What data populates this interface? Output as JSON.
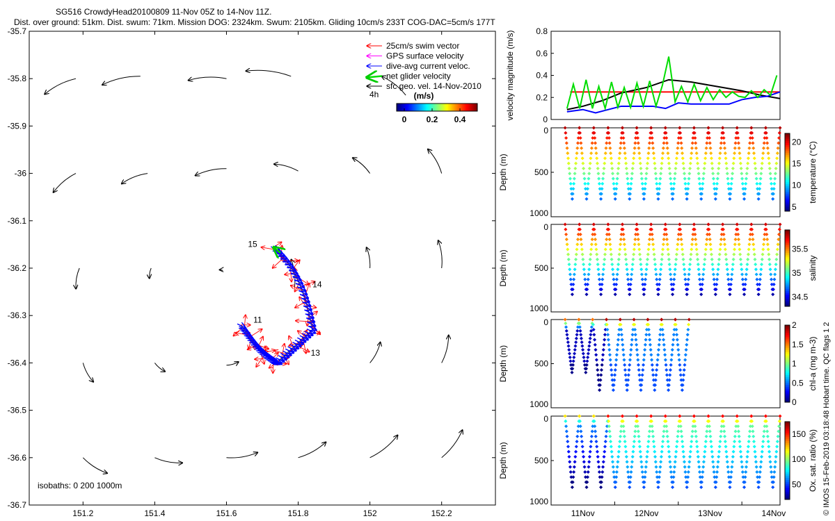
{
  "header": {
    "line1": "SG516 CrowdyHead20100809 11-Nov 05Z to 14-Nov 11Z.",
    "line2": "Dist. over ground: 51km. Dist. swum: 71km. Mission DOG: 2324km. Swum: 2105km. Gliding 10cm/s 233T COG-DAC=5cm/s 177T"
  },
  "watermark": "© IMOS 15-Feb-2019 03:18:48 Hobart time. QC flags 1  2",
  "map": {
    "xticks": [
      151.2,
      151.4,
      151.6,
      151.8,
      152,
      152.2
    ],
    "yticks": [
      -35.7,
      -35.8,
      -35.9,
      -36,
      -36.1,
      -36.2,
      -36.3,
      -36.4,
      -36.5,
      -36.6,
      -36.7
    ],
    "xlim": [
      151.05,
      152.35
    ],
    "ylim": [
      -36.7,
      -35.7
    ],
    "legend": [
      {
        "label": "25cm/s swim vector",
        "color": "#ff0000"
      },
      {
        "label": "GPS surface velocity",
        "color": "#ff00ff"
      },
      {
        "label": "dive-avg current veloc.",
        "color": "#0000ff"
      },
      {
        "label": "net glider velocity",
        "color": "#00dd00"
      },
      {
        "label": "sfc geo. vel. 14-Nov-2010",
        "color": "#000000"
      }
    ],
    "interval_label": "4h",
    "colorbar": {
      "title": "(m/s)",
      "ticks": [
        "0",
        "0.2",
        "0.4"
      ]
    },
    "isobaths_label": "isobaths: 0   200  1000m",
    "day_labels": [
      {
        "text": "15",
        "lon": 151.66,
        "lat": -36.155
      },
      {
        "text": "14",
        "lon": 151.84,
        "lat": -36.24
      },
      {
        "text": "11",
        "lon": 151.675,
        "lat": -36.315
      },
      {
        "text": "13",
        "lon": 151.835,
        "lat": -36.385
      }
    ],
    "geo_arrows": [
      {
        "x": 151.18,
        "y": -35.8,
        "u": -0.09,
        "v": -0.045
      },
      {
        "x": 151.36,
        "y": -35.795,
        "u": -0.11,
        "v": -0.025
      },
      {
        "x": 151.6,
        "y": -35.8,
        "u": -0.11,
        "v": -0.005
      },
      {
        "x": 151.78,
        "y": -35.795,
        "u": -0.13,
        "v": 0.015
      },
      {
        "x": 152.1,
        "y": -35.835,
        "u": -0.07,
        "v": 0.055
      },
      {
        "x": 151.18,
        "y": -36.0,
        "u": -0.065,
        "v": -0.055
      },
      {
        "x": 151.38,
        "y": -36.0,
        "u": -0.075,
        "v": -0.03
      },
      {
        "x": 151.6,
        "y": -35.99,
        "u": -0.09,
        "v": -0.02
      },
      {
        "x": 151.8,
        "y": -35.995,
        "u": -0.07,
        "v": 0.02
      },
      {
        "x": 152.0,
        "y": -36.0,
        "u": -0.05,
        "v": 0.045
      },
      {
        "x": 152.2,
        "y": -36.0,
        "u": -0.04,
        "v": 0.07
      },
      {
        "x": 151.19,
        "y": -36.2,
        "u": -0.01,
        "v": -0.06
      },
      {
        "x": 151.39,
        "y": -36.2,
        "u": -0.005,
        "v": -0.03
      },
      {
        "x": 151.59,
        "y": -36.205,
        "u": -0.01,
        "v": 0.002
      },
      {
        "x": 151.79,
        "y": -36.24,
        "u": -0.01,
        "v": 0.08
      },
      {
        "x": 152.0,
        "y": -36.2,
        "u": -0.01,
        "v": 0.06
      },
      {
        "x": 152.2,
        "y": -36.2,
        "u": -0.01,
        "v": 0.08
      },
      {
        "x": 151.6,
        "y": -36.405,
        "u": 0.035,
        "v": 0.01
      },
      {
        "x": 152.0,
        "y": -36.4,
        "u": 0.03,
        "v": 0.06
      },
      {
        "x": 152.2,
        "y": -36.4,
        "u": 0.02,
        "v": 0.08
      },
      {
        "x": 151.2,
        "y": -36.4,
        "u": 0.03,
        "v": -0.055
      },
      {
        "x": 151.4,
        "y": -36.4,
        "u": 0.03,
        "v": -0.025
      },
      {
        "x": 151.2,
        "y": -36.6,
        "u": 0.07,
        "v": -0.045
      },
      {
        "x": 151.4,
        "y": -36.6,
        "u": 0.08,
        "v": -0.015
      },
      {
        "x": 151.6,
        "y": -36.6,
        "u": 0.09,
        "v": 0.015
      },
      {
        "x": 151.8,
        "y": -36.6,
        "u": 0.08,
        "v": 0.045
      },
      {
        "x": 152.0,
        "y": -36.6,
        "u": 0.08,
        "v": 0.065
      },
      {
        "x": 152.2,
        "y": -36.6,
        "u": 0.06,
        "v": 0.08
      }
    ]
  },
  "chart_data": [
    {
      "type": "line",
      "title": "",
      "ylabel": "velocity magnitude (m/s)",
      "x_days": [
        11,
        14.6
      ],
      "ylim": [
        0,
        0.8
      ],
      "yticks": [
        0,
        0.2,
        0.4,
        0.6,
        0.8
      ],
      "series": [
        {
          "name": "swim vector",
          "color": "#ff0000",
          "x": [
            11.3,
            14.6
          ],
          "values": [
            0.25,
            0.25
          ]
        },
        {
          "name": "sfc geo. vel.",
          "color": "#000000",
          "x": [
            11.25,
            11.5,
            11.8,
            12.1,
            12.5,
            12.85,
            13.2,
            13.6,
            14.0,
            14.3,
            14.6
          ],
          "values": [
            0.09,
            0.12,
            0.17,
            0.24,
            0.29,
            0.36,
            0.34,
            0.3,
            0.26,
            0.22,
            0.19
          ]
        },
        {
          "name": "dive-avg current",
          "color": "#0000ff",
          "x": [
            11.25,
            11.5,
            11.7,
            11.9,
            12.1,
            12.4,
            12.6,
            12.8,
            13.0,
            13.2,
            13.5,
            13.8,
            14.0,
            14.2,
            14.4,
            14.6
          ],
          "values": [
            0.07,
            0.09,
            0.06,
            0.09,
            0.12,
            0.12,
            0.12,
            0.1,
            0.15,
            0.14,
            0.14,
            0.14,
            0.18,
            0.2,
            0.21,
            0.25
          ]
        },
        {
          "name": "net glider",
          "color": "#00dd00",
          "x": [
            11.25,
            11.35,
            11.45,
            11.55,
            11.65,
            11.75,
            11.85,
            11.95,
            12.05,
            12.15,
            12.25,
            12.35,
            12.45,
            12.55,
            12.65,
            12.75,
            12.85,
            12.95,
            13.05,
            13.15,
            13.25,
            13.35,
            13.45,
            13.55,
            13.65,
            13.75,
            13.85,
            13.95,
            14.05,
            14.15,
            14.25,
            14.35,
            14.45,
            14.55
          ],
          "values": [
            0.1,
            0.32,
            0.1,
            0.36,
            0.1,
            0.3,
            0.1,
            0.34,
            0.11,
            0.29,
            0.11,
            0.33,
            0.12,
            0.35,
            0.12,
            0.31,
            0.57,
            0.16,
            0.3,
            0.16,
            0.32,
            0.17,
            0.29,
            0.18,
            0.27,
            0.2,
            0.25,
            0.21,
            0.2,
            0.26,
            0.2,
            0.27,
            0.22,
            0.4
          ]
        }
      ]
    },
    {
      "type": "scatter",
      "ylabel": "Depth (m)",
      "cblabel": "temperature (°C)",
      "ylim": [
        1000,
        0
      ],
      "clim": [
        4,
        22
      ],
      "cbticks": [
        5,
        10,
        15,
        20
      ],
      "start": 11.22,
      "end": 14.6,
      "dives": 15,
      "depth_series": [
        800,
        800,
        800,
        800,
        800,
        800,
        800,
        800,
        800,
        800,
        800,
        800,
        800,
        800,
        800
      ]
    },
    {
      "type": "scatter",
      "ylabel": "Depth (m)",
      "cblabel": "salinity",
      "ylim": [
        1000,
        0
      ],
      "clim": [
        34.3,
        35.9
      ],
      "cbticks": [
        34.5,
        35,
        35.5
      ],
      "start": 11.22,
      "end": 14.6,
      "dives": 15,
      "depth_series": [
        800,
        800,
        800,
        800,
        800,
        800,
        800,
        800,
        800,
        800,
        800,
        800,
        800,
        800,
        800
      ]
    },
    {
      "type": "scatter",
      "ylabel": "Depth (m)",
      "cblabel": "chl-a (mg m-3)",
      "ylim": [
        1000,
        0
      ],
      "clim": [
        0,
        2
      ],
      "cbticks": [
        0,
        0.5,
        1,
        1.5,
        2
      ],
      "start": 11.22,
      "end": 13.17,
      "dives": 9,
      "depth_series": [
        600,
        600,
        800,
        800,
        800,
        800,
        800,
        800,
        800
      ]
    },
    {
      "type": "scatter",
      "ylabel": "Depth (m)",
      "cblabel": "Ox. sat. ratio (%)",
      "ylim": [
        1000,
        0
      ],
      "clim": [
        20,
        175
      ],
      "cbticks": [
        50,
        100,
        150
      ],
      "start": 11.22,
      "end": 14.6,
      "dives": 15,
      "depth_series": [
        800,
        800,
        800,
        800,
        800,
        800,
        800,
        800,
        800,
        800,
        800,
        800,
        800,
        800,
        800
      ]
    }
  ],
  "time_axis": {
    "labels": [
      "11Nov",
      "12Nov",
      "13Nov",
      "14Nov"
    ],
    "days": [
      11,
      12,
      13,
      14
    ]
  },
  "profile_yticks": [
    "0",
    "500",
    "1000"
  ]
}
